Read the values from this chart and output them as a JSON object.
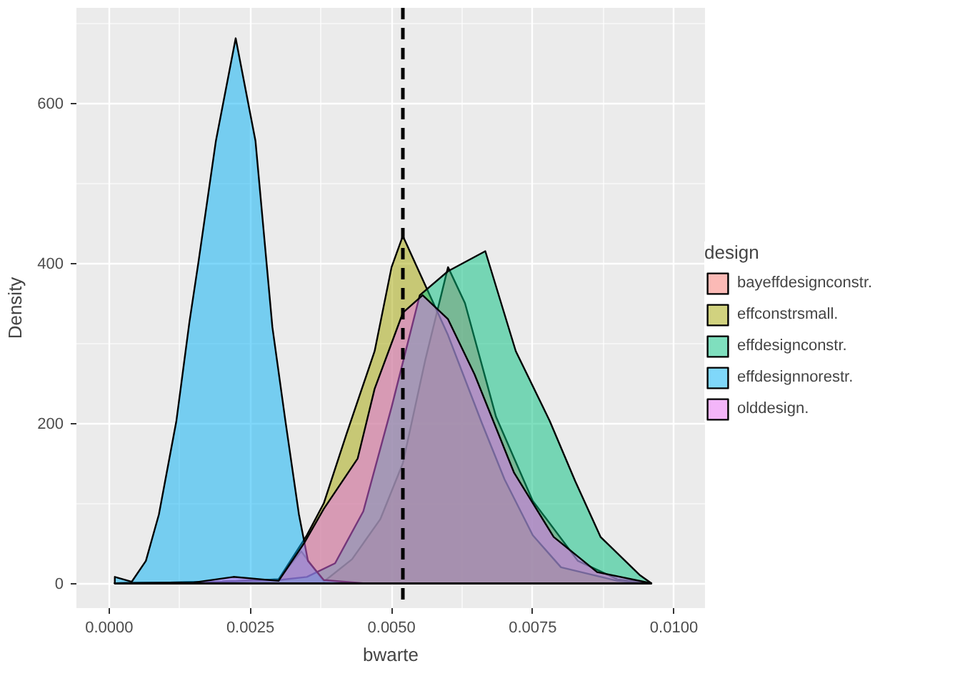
{
  "chart_data": {
    "type": "area",
    "xlabel": "bwarte",
    "ylabel": "Density",
    "legend_title": "design",
    "xlim": [
      -0.00058,
      0.01055
    ],
    "ylim": [
      -31,
      719
    ],
    "xticks": [
      {
        "value": 0,
        "label": "0.0000"
      },
      {
        "value": 0.0025,
        "label": "0.0025"
      },
      {
        "value": 0.005,
        "label": "0.0050"
      },
      {
        "value": 0.0075,
        "label": "0.0075"
      },
      {
        "value": 0.01,
        "label": "0.0100"
      }
    ],
    "yticks": [
      0,
      200,
      400,
      600
    ],
    "grid": true,
    "legend": "right",
    "ref_lines": [
      {
        "axis": "x",
        "value": 0.0052,
        "line_style": "dashed",
        "color": "#000000"
      }
    ],
    "series": [
      {
        "name": "bayeffdesignconstr.",
        "color": "#f8766d",
        "x": [
          0.0001,
          0.002,
          0.003,
          0.0034,
          0.0038,
          0.0043,
          0.0048,
          0.0052,
          0.0056,
          0.006,
          0.0063,
          0.00685,
          0.0075,
          0.0083,
          0.009,
          0.0096
        ],
        "values": [
          0,
          2,
          5,
          40,
          2,
          30,
          80,
          150,
          280,
          395,
          350,
          208,
          103,
          28,
          5,
          0
        ]
      },
      {
        "name": "effconstrsmall.",
        "color": "#a3a500",
        "x": [
          0.0001,
          0.002,
          0.003,
          0.0035,
          0.0038,
          0.0042,
          0.0047,
          0.005,
          0.0052,
          0.0056,
          0.006,
          0.0066,
          0.007,
          0.0075,
          0.008,
          0.009,
          0.0096
        ],
        "values": [
          0,
          2,
          5,
          60,
          100,
          186,
          290,
          395,
          434,
          372,
          310,
          200,
          130,
          60,
          20,
          3,
          0
        ]
      },
      {
        "name": "effdesignconstr.",
        "color": "#00bf7d",
        "x": [
          0.0001,
          0.002,
          0.003,
          0.0035,
          0.004,
          0.0045,
          0.005,
          0.0055,
          0.006,
          0.00666,
          0.0072,
          0.0078,
          0.00825,
          0.0087,
          0.0094,
          0.0096
        ],
        "values": [
          0,
          2,
          4,
          8,
          25,
          90,
          220,
          360,
          390,
          415,
          290,
          203,
          128,
          58,
          10,
          0
        ]
      },
      {
        "name": "effdesignnorestr.",
        "color": "#00b0f6",
        "x": [
          0.0001,
          0.0004,
          0.00065,
          0.00088,
          0.00119,
          0.00142,
          0.00158,
          0.00189,
          0.00224,
          0.00259,
          0.00289,
          0.00312,
          0.00336,
          0.00352,
          0.0038,
          0.0045,
          0.0096
        ],
        "values": [
          8,
          2,
          28,
          86,
          203,
          326,
          401,
          553,
          681,
          553,
          320,
          203,
          86,
          28,
          4,
          0,
          0
        ]
      },
      {
        "name": "olddesign.",
        "color": "#e76bf3",
        "x": [
          0.0001,
          0.0015,
          0.0022,
          0.003,
          0.00345,
          0.0038,
          0.0044,
          0.0047,
          0.0052,
          0.00555,
          0.006,
          0.00647,
          0.00717,
          0.00787,
          0.00864,
          0.0096
        ],
        "values": [
          0,
          1,
          8,
          3,
          50,
          93,
          156,
          243,
          338,
          360,
          330,
          261,
          138,
          58,
          14,
          0
        ]
      }
    ]
  }
}
